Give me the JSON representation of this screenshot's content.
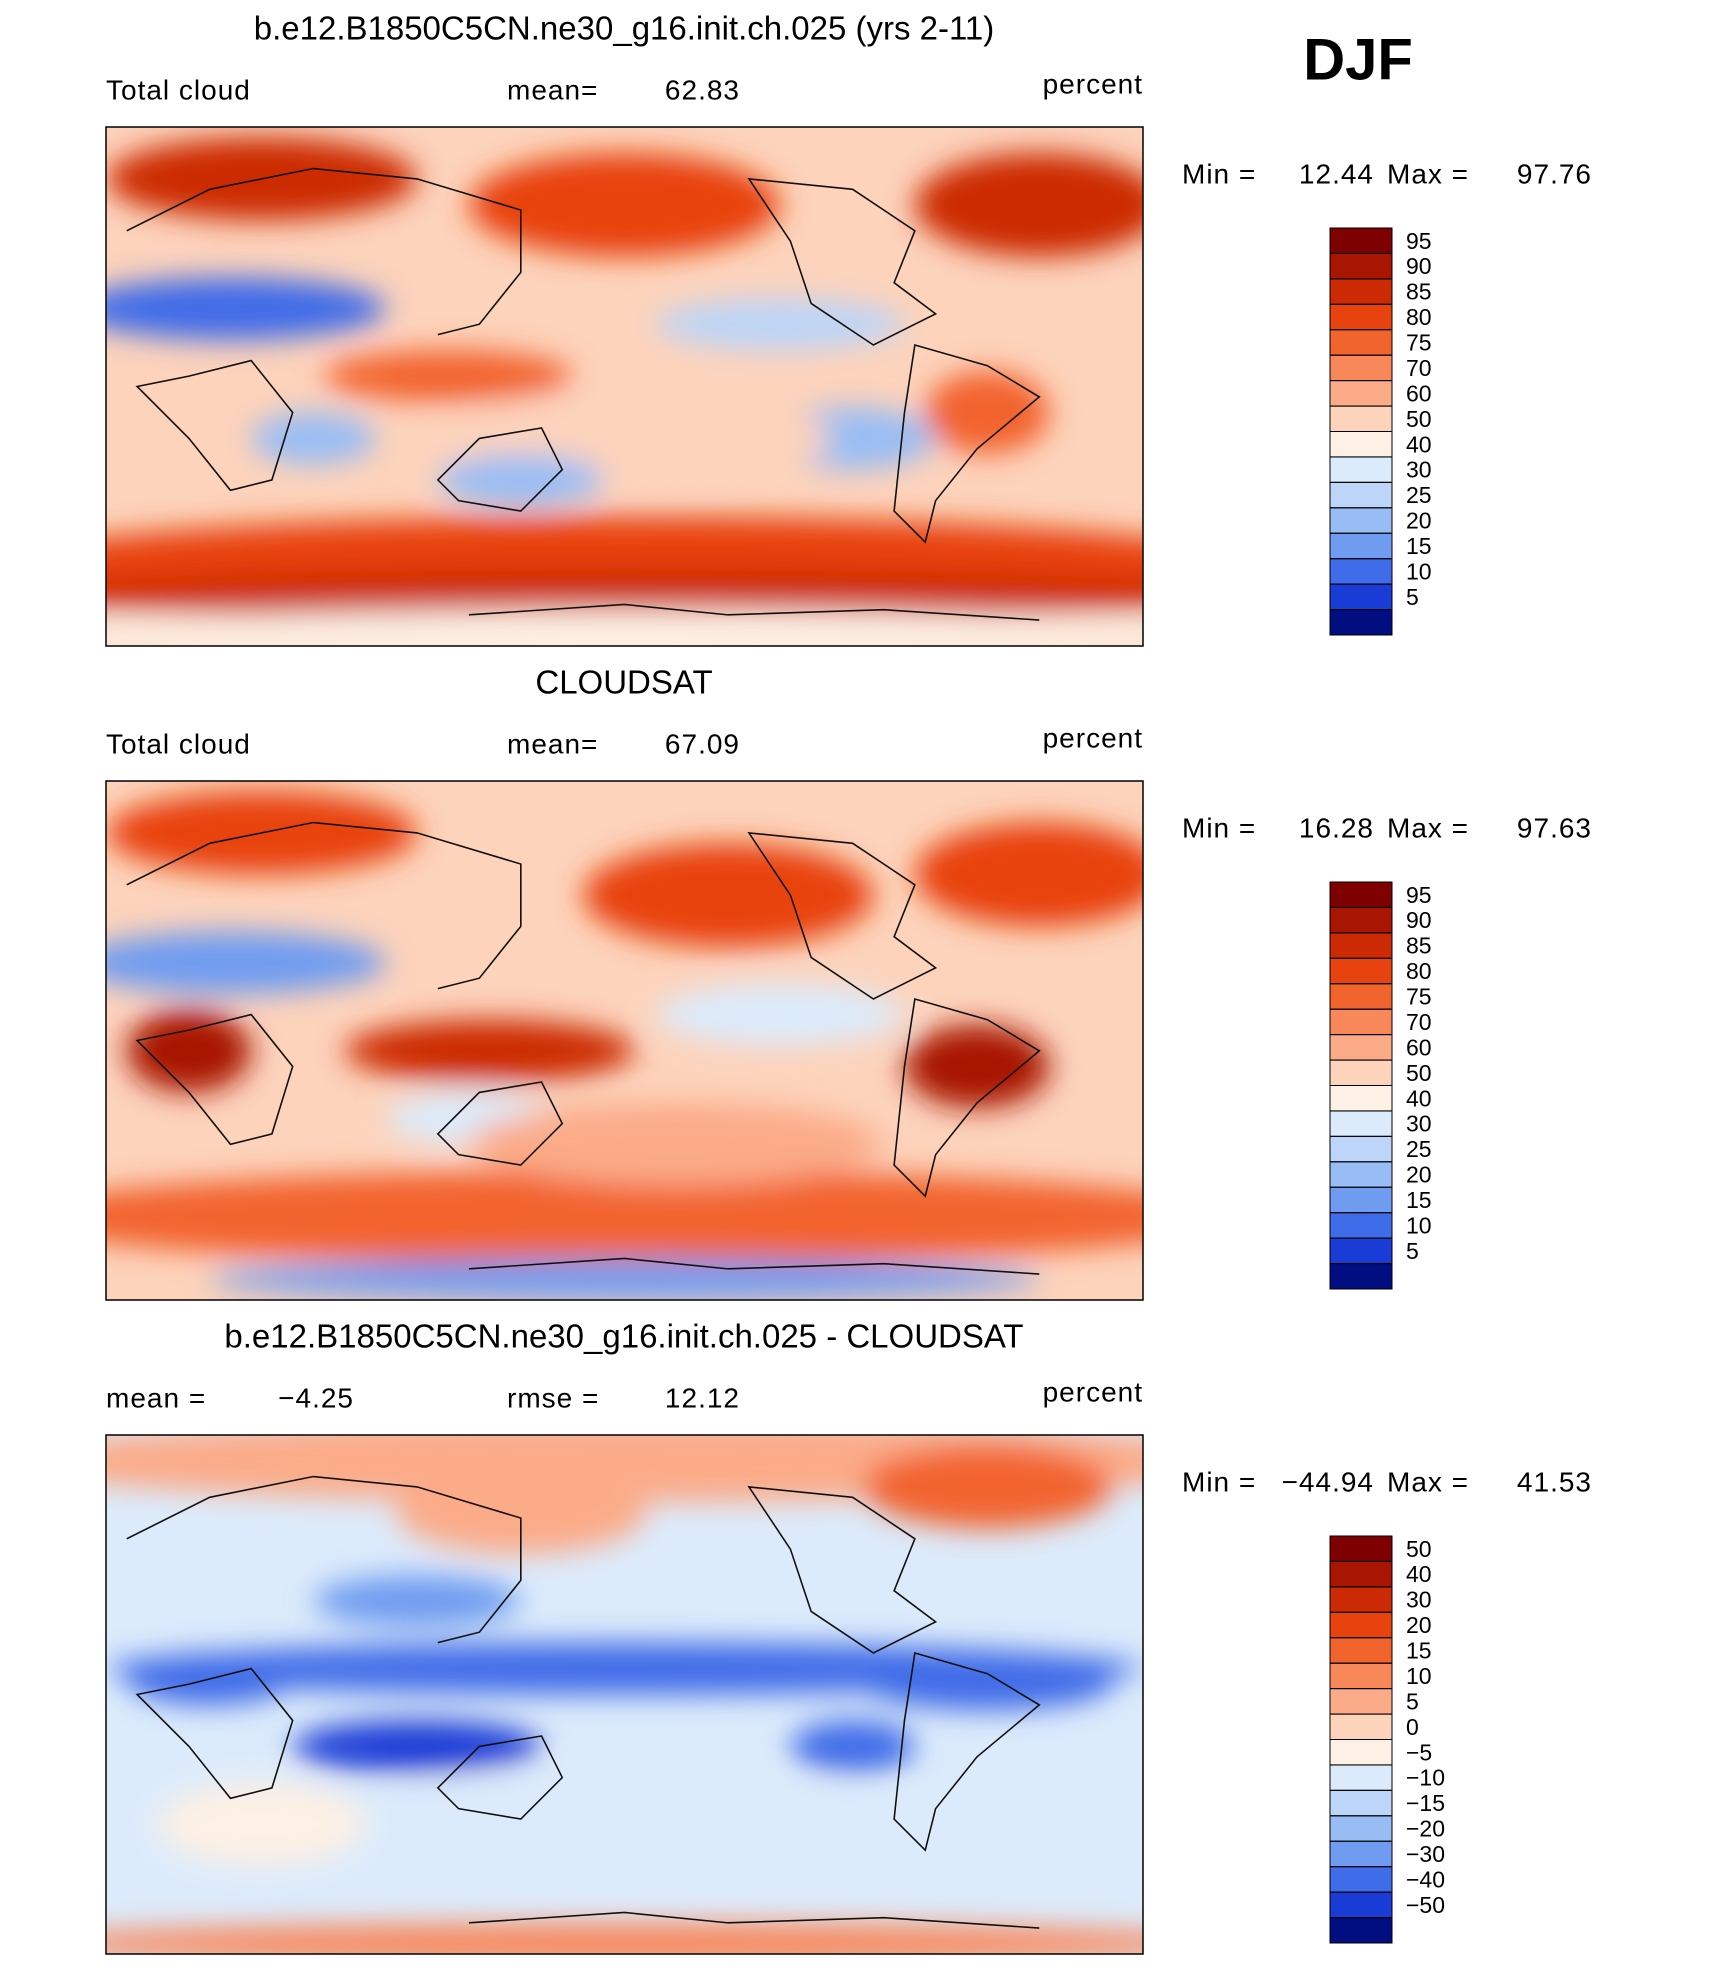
{
  "label": "DJF",
  "panels": [
    {
      "title": "b.e12.B1850C5CN.ne30_g16.init.ch.025 (yrs 2-11)",
      "left_label": "Total cloud",
      "center_label": "mean=",
      "center_value": 62.83,
      "right_text": "percent",
      "min_label": "Min =",
      "min": 12.44,
      "max_label": "Max =",
      "max": 97.76,
      "levels": [
        95,
        90,
        85,
        80,
        75,
        70,
        60,
        50,
        40,
        30,
        25,
        20,
        15,
        10,
        5
      ],
      "colors": [
        "#7f0000",
        "#a81500",
        "#cc2a04",
        "#e8420f",
        "#f2642e",
        "#f8875a",
        "#fbab88",
        "#fdd3bb",
        "#fdf0e4",
        "#dcebfb",
        "#bcd5f8",
        "#98bdf4",
        "#6f9cf0",
        "#3f6ce8",
        "#1a3cd6",
        "#000e82"
      ]
    },
    {
      "title": "CLOUDSAT",
      "left_label": "Total cloud",
      "center_label": "mean=",
      "center_value": 67.09,
      "right_text": "percent",
      "min_label": "Min =",
      "min": 16.28,
      "max_label": "Max =",
      "max": 97.63,
      "levels": [
        95,
        90,
        85,
        80,
        75,
        70,
        60,
        50,
        40,
        30,
        25,
        20,
        15,
        10,
        5
      ],
      "colors": [
        "#7f0000",
        "#a81500",
        "#cc2a04",
        "#e8420f",
        "#f2642e",
        "#f8875a",
        "#fbab88",
        "#fdd3bb",
        "#fdf0e4",
        "#dcebfb",
        "#bcd5f8",
        "#98bdf4",
        "#6f9cf0",
        "#3f6ce8",
        "#1a3cd6",
        "#000e82"
      ]
    },
    {
      "title": "b.e12.B1850C5CN.ne30_g16.init.ch.025 - CLOUDSAT",
      "left_label": "mean =",
      "left_value": {
        "value": -4.25,
        "label": "−4.25"
      },
      "center_label": "rmse =",
      "center_value": 12.12,
      "right_text": "percent",
      "min_label": "Min =",
      "min": {
        "value": -44.94,
        "label": "−44.94"
      },
      "max_label": "Max =",
      "max": 41.53,
      "levels": [
        50,
        40,
        30,
        20,
        15,
        10,
        5,
        0,
        {
          "value": -5,
          "label": "−5"
        },
        {
          "value": -10,
          "label": "−10"
        },
        {
          "value": -15,
          "label": "−15"
        },
        {
          "value": -20,
          "label": "−20"
        },
        {
          "value": -30,
          "label": "−30"
        },
        {
          "value": -40,
          "label": "−40"
        },
        {
          "value": -50,
          "label": "−50"
        }
      ],
      "colors": [
        "#7f0000",
        "#a81500",
        "#cc2a04",
        "#e8420f",
        "#f2642e",
        "#f8875a",
        "#fbab88",
        "#fdd3bb",
        "#fdf0e4",
        "#dcebfb",
        "#bcd5f8",
        "#98bdf4",
        "#6f9cf0",
        "#3f6ce8",
        "#1a3cd6",
        "#000e82"
      ]
    }
  ]
}
